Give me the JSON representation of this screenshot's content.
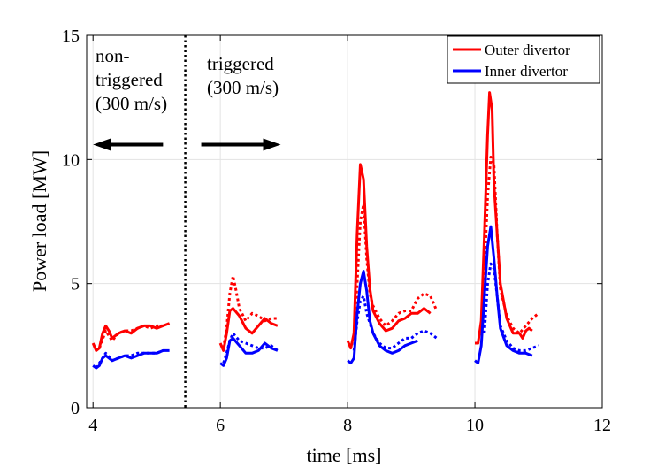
{
  "chart_data": {
    "type": "line",
    "xlabel": "time [ms]",
    "ylabel": "Power load [MW]",
    "xlim": [
      3.9,
      12
    ],
    "ylim": [
      0,
      15
    ],
    "xticks": [
      "4",
      "6",
      "8",
      "10",
      "12"
    ],
    "yticks": [
      "0",
      "5",
      "10",
      "15"
    ],
    "grid": true,
    "legend_position": "top-right",
    "legend": [
      {
        "label": "Outer divertor",
        "color": "#ff0000"
      },
      {
        "label": "Inner divertor",
        "color": "#0000ff"
      }
    ],
    "divider_x": 5.45,
    "annotations": [
      {
        "lines": [
          "non-",
          "triggered",
          "(300 m/s)"
        ],
        "arrow": "left",
        "arrow_y": 10.6,
        "arrow_x": [
          4.0,
          5.1
        ]
      },
      {
        "lines": [
          "triggered",
          "(300 m/s)"
        ],
        "arrow": "right",
        "arrow_y": 10.6,
        "arrow_x": [
          5.7,
          6.95
        ]
      }
    ],
    "series": [
      {
        "group": "Outer divertor",
        "style": "solid",
        "color": "#ff0000",
        "points": [
          [
            4.0,
            2.6
          ],
          [
            4.05,
            2.3
          ],
          [
            4.1,
            2.4
          ],
          [
            4.15,
            3.0
          ],
          [
            4.2,
            3.3
          ],
          [
            4.25,
            3.1
          ],
          [
            4.3,
            2.8
          ],
          [
            4.4,
            3.0
          ],
          [
            4.5,
            3.1
          ],
          [
            4.6,
            3.0
          ],
          [
            4.7,
            3.2
          ],
          [
            4.8,
            3.3
          ],
          [
            4.9,
            3.3
          ],
          [
            5.0,
            3.2
          ],
          [
            5.1,
            3.3
          ],
          [
            5.2,
            3.4
          ],
          [
            6.0,
            2.6
          ],
          [
            6.05,
            2.3
          ],
          [
            6.1,
            3.0
          ],
          [
            6.15,
            3.9
          ],
          [
            6.2,
            4.0
          ],
          [
            6.3,
            3.7
          ],
          [
            6.4,
            3.2
          ],
          [
            6.5,
            3.0
          ],
          [
            6.6,
            3.3
          ],
          [
            6.7,
            3.6
          ],
          [
            6.8,
            3.4
          ],
          [
            6.9,
            3.3
          ],
          [
            8.0,
            2.7
          ],
          [
            8.05,
            2.4
          ],
          [
            8.1,
            3.0
          ],
          [
            8.15,
            7.0
          ],
          [
            8.2,
            9.8
          ],
          [
            8.25,
            9.2
          ],
          [
            8.3,
            6.5
          ],
          [
            8.35,
            4.8
          ],
          [
            8.4,
            3.9
          ],
          [
            8.5,
            3.4
          ],
          [
            8.6,
            3.1
          ],
          [
            8.7,
            3.2
          ],
          [
            8.8,
            3.5
          ],
          [
            8.9,
            3.6
          ],
          [
            9.0,
            3.8
          ],
          [
            9.1,
            3.8
          ],
          [
            9.2,
            4.0
          ],
          [
            9.3,
            3.8
          ],
          [
            10.0,
            2.6
          ],
          [
            10.05,
            2.6
          ],
          [
            10.1,
            3.5
          ],
          [
            10.15,
            7.0
          ],
          [
            10.2,
            11.0
          ],
          [
            10.23,
            12.7
          ],
          [
            10.27,
            12.0
          ],
          [
            10.3,
            9.0
          ],
          [
            10.4,
            5.0
          ],
          [
            10.5,
            3.6
          ],
          [
            10.6,
            3.0
          ],
          [
            10.7,
            3.0
          ],
          [
            10.75,
            2.8
          ],
          [
            10.8,
            3.1
          ],
          [
            10.85,
            3.2
          ],
          [
            10.9,
            3.1
          ]
        ]
      },
      {
        "group": "Outer divertor",
        "style": "dotted",
        "color": "#ff0000",
        "points": [
          [
            4.1,
            2.4
          ],
          [
            4.2,
            3.1
          ],
          [
            4.3,
            2.7
          ],
          [
            4.4,
            3.0
          ],
          [
            4.5,
            3.1
          ],
          [
            4.6,
            3.1
          ],
          [
            4.7,
            3.2
          ],
          [
            4.8,
            3.3
          ],
          [
            4.9,
            3.2
          ],
          [
            5.0,
            3.3
          ],
          [
            5.1,
            3.3
          ],
          [
            6.05,
            2.4
          ],
          [
            6.1,
            3.2
          ],
          [
            6.15,
            4.6
          ],
          [
            6.2,
            5.3
          ],
          [
            6.25,
            4.7
          ],
          [
            6.3,
            4.0
          ],
          [
            6.4,
            3.5
          ],
          [
            6.5,
            3.8
          ],
          [
            6.6,
            3.7
          ],
          [
            6.7,
            3.5
          ],
          [
            6.8,
            3.6
          ],
          [
            6.9,
            3.6
          ],
          [
            8.1,
            2.9
          ],
          [
            8.15,
            5.0
          ],
          [
            8.2,
            7.5
          ],
          [
            8.25,
            8.2
          ],
          [
            8.3,
            6.0
          ],
          [
            8.35,
            4.6
          ],
          [
            8.4,
            4.1
          ],
          [
            8.5,
            3.6
          ],
          [
            8.6,
            3.3
          ],
          [
            8.7,
            3.5
          ],
          [
            8.8,
            3.8
          ],
          [
            8.9,
            3.9
          ],
          [
            9.0,
            3.9
          ],
          [
            9.1,
            4.4
          ],
          [
            9.2,
            4.6
          ],
          [
            9.3,
            4.5
          ],
          [
            9.4,
            3.9
          ],
          [
            10.1,
            3.0
          ],
          [
            10.15,
            5.5
          ],
          [
            10.2,
            8.5
          ],
          [
            10.25,
            10.1
          ],
          [
            10.3,
            9.8
          ],
          [
            10.35,
            7.0
          ],
          [
            10.4,
            4.8
          ],
          [
            10.5,
            3.7
          ],
          [
            10.6,
            3.2
          ],
          [
            10.7,
            3.0
          ],
          [
            10.8,
            3.3
          ],
          [
            10.9,
            3.6
          ],
          [
            11.0,
            3.8
          ]
        ]
      },
      {
        "group": "Inner divertor",
        "style": "solid",
        "color": "#0000ff",
        "points": [
          [
            4.0,
            1.7
          ],
          [
            4.05,
            1.6
          ],
          [
            4.1,
            1.7
          ],
          [
            4.15,
            2.0
          ],
          [
            4.2,
            2.1
          ],
          [
            4.3,
            1.9
          ],
          [
            4.4,
            2.0
          ],
          [
            4.5,
            2.1
          ],
          [
            4.6,
            2.0
          ],
          [
            4.7,
            2.1
          ],
          [
            4.8,
            2.2
          ],
          [
            4.9,
            2.2
          ],
          [
            5.0,
            2.2
          ],
          [
            5.1,
            2.3
          ],
          [
            5.2,
            2.3
          ],
          [
            6.0,
            1.8
          ],
          [
            6.05,
            1.7
          ],
          [
            6.1,
            2.0
          ],
          [
            6.15,
            2.7
          ],
          [
            6.2,
            2.8
          ],
          [
            6.3,
            2.5
          ],
          [
            6.4,
            2.2
          ],
          [
            6.5,
            2.2
          ],
          [
            6.6,
            2.3
          ],
          [
            6.7,
            2.6
          ],
          [
            6.8,
            2.4
          ],
          [
            6.9,
            2.3
          ],
          [
            8.0,
            1.9
          ],
          [
            8.05,
            1.8
          ],
          [
            8.1,
            2.0
          ],
          [
            8.15,
            3.8
          ],
          [
            8.2,
            5.0
          ],
          [
            8.25,
            5.5
          ],
          [
            8.3,
            4.7
          ],
          [
            8.35,
            3.5
          ],
          [
            8.4,
            3.0
          ],
          [
            8.5,
            2.5
          ],
          [
            8.6,
            2.3
          ],
          [
            8.7,
            2.2
          ],
          [
            8.8,
            2.3
          ],
          [
            8.9,
            2.5
          ],
          [
            9.0,
            2.6
          ],
          [
            9.1,
            2.7
          ],
          [
            10.0,
            1.9
          ],
          [
            10.05,
            1.8
          ],
          [
            10.1,
            2.5
          ],
          [
            10.15,
            4.5
          ],
          [
            10.2,
            6.5
          ],
          [
            10.25,
            7.3
          ],
          [
            10.3,
            6.0
          ],
          [
            10.35,
            4.5
          ],
          [
            10.4,
            3.2
          ],
          [
            10.5,
            2.5
          ],
          [
            10.6,
            2.3
          ],
          [
            10.7,
            2.2
          ],
          [
            10.8,
            2.2
          ],
          [
            10.9,
            2.1
          ]
        ]
      },
      {
        "group": "Inner divertor",
        "style": "dotted",
        "color": "#0000ff",
        "points": [
          [
            4.05,
            1.6
          ],
          [
            4.1,
            1.8
          ],
          [
            4.2,
            2.2
          ],
          [
            4.3,
            1.9
          ],
          [
            4.4,
            2.0
          ],
          [
            4.5,
            2.1
          ],
          [
            4.6,
            2.1
          ],
          [
            4.7,
            2.2
          ],
          [
            4.8,
            2.2
          ],
          [
            4.9,
            2.2
          ],
          [
            5.0,
            2.2
          ],
          [
            5.1,
            2.3
          ],
          [
            6.05,
            1.8
          ],
          [
            6.1,
            2.2
          ],
          [
            6.15,
            2.7
          ],
          [
            6.2,
            3.0
          ],
          [
            6.3,
            2.7
          ],
          [
            6.4,
            2.6
          ],
          [
            6.5,
            2.5
          ],
          [
            6.6,
            2.4
          ],
          [
            6.7,
            2.4
          ],
          [
            6.8,
            2.5
          ],
          [
            6.9,
            2.3
          ],
          [
            8.1,
            2.3
          ],
          [
            8.15,
            3.5
          ],
          [
            8.2,
            4.3
          ],
          [
            8.25,
            4.5
          ],
          [
            8.3,
            3.8
          ],
          [
            8.4,
            3.0
          ],
          [
            8.5,
            2.6
          ],
          [
            8.6,
            2.4
          ],
          [
            8.7,
            2.4
          ],
          [
            8.8,
            2.6
          ],
          [
            8.9,
            2.8
          ],
          [
            9.0,
            2.8
          ],
          [
            9.1,
            3.0
          ],
          [
            9.2,
            3.1
          ],
          [
            9.3,
            3.0
          ],
          [
            9.4,
            2.8
          ],
          [
            10.15,
            3.0
          ],
          [
            10.2,
            5.0
          ],
          [
            10.25,
            5.8
          ],
          [
            10.3,
            5.6
          ],
          [
            10.35,
            4.5
          ],
          [
            10.4,
            3.3
          ],
          [
            10.5,
            2.7
          ],
          [
            10.6,
            2.4
          ],
          [
            10.7,
            2.3
          ],
          [
            10.8,
            2.3
          ],
          [
            10.9,
            2.4
          ],
          [
            11.0,
            2.5
          ]
        ]
      }
    ]
  }
}
